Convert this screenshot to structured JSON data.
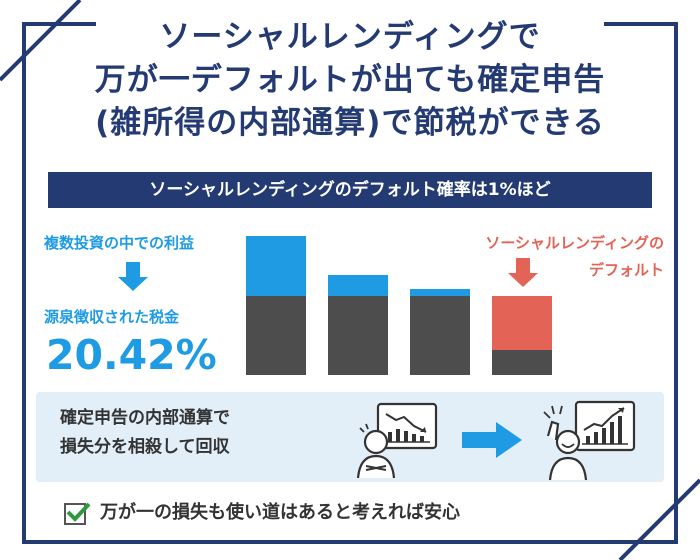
{
  "title": {
    "line1": "ソーシャルレンディングで",
    "line2": "万が一デフォルトが出ても確定申告",
    "line3": "(雑所得の内部通算)で節税ができる"
  },
  "banner": "ソーシャルレンディングのデフォルト確率は1%ほど",
  "left": {
    "label1": "複数投資の中での利益",
    "label2": "源泉徴収された税金",
    "percent": "20.42%"
  },
  "default_label": {
    "line1": "ソーシャルレンディングの",
    "line2": "デフォルト"
  },
  "panel": {
    "line1": "確定申告の内部通算で",
    "line2": "損失分を相殺して回収"
  },
  "bottom_text": "万が一の損失も使い道はあると考えれば安心",
  "colors": {
    "navy": "#243a73",
    "blue": "#1e9be3",
    "red": "#e36356",
    "dark_gray": "#4d4d4d",
    "panel_bg": "#e2eef8",
    "check_green": "#2f9a3d"
  },
  "icons": [
    "arrow-down-icon",
    "person-worried-icon",
    "chart-down-icon",
    "arrow-right-icon",
    "person-happy-icon",
    "chart-up-icon",
    "checkbox-checked-icon"
  ]
}
